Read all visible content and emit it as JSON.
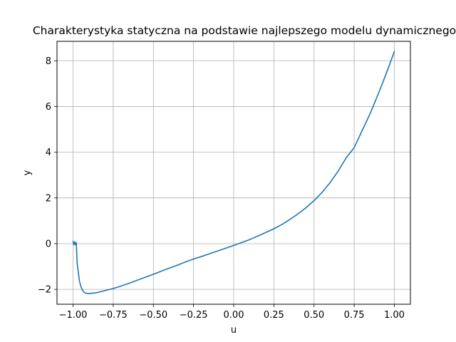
{
  "chart_data": {
    "type": "line",
    "title": "Charakterystyka statyczna na podstawie najlepszego modelu dynamicznego",
    "xlabel": "u",
    "ylabel": "y",
    "xlim": [
      -1.1,
      1.1
    ],
    "ylim": [
      -2.65,
      8.85
    ],
    "xticks": [
      -1.0,
      -0.75,
      -0.5,
      -0.25,
      0.0,
      0.25,
      0.5,
      0.75,
      1.0
    ],
    "xtick_labels": [
      "−1.00",
      "−0.75",
      "−0.50",
      "−0.25",
      "0.00",
      "0.25",
      "0.50",
      "0.75",
      "1.00"
    ],
    "yticks": [
      -2,
      0,
      2,
      4,
      6,
      8
    ],
    "ytick_labels": [
      "−2",
      "0",
      "2",
      "4",
      "6",
      "8"
    ],
    "grid": true,
    "series": [
      {
        "color": "#1f77b4",
        "x": [
          -1.0,
          -0.995,
          -0.99,
          -0.985,
          -0.98,
          -0.975,
          -0.97,
          -0.96,
          -0.95,
          -0.94,
          -0.93,
          -0.92,
          -0.91,
          -0.9,
          -0.88,
          -0.85,
          -0.8,
          -0.75,
          -0.7,
          -0.65,
          -0.6,
          -0.55,
          -0.5,
          -0.45,
          -0.4,
          -0.35,
          -0.3,
          -0.25,
          -0.2,
          -0.15,
          -0.1,
          -0.05,
          0.0,
          0.05,
          0.1,
          0.15,
          0.2,
          0.25,
          0.3,
          0.35,
          0.4,
          0.45,
          0.5,
          0.55,
          0.6,
          0.65,
          0.7,
          0.75,
          0.8,
          0.85,
          0.9,
          0.95,
          1.0
        ],
        "y": [
          0.1,
          -0.05,
          0.08,
          -0.05,
          0.05,
          -0.8,
          -1.1,
          -1.65,
          -1.9,
          -2.05,
          -2.13,
          -2.17,
          -2.18,
          -2.18,
          -2.17,
          -2.14,
          -2.05,
          -1.96,
          -1.85,
          -1.73,
          -1.6,
          -1.47,
          -1.34,
          -1.2,
          -1.07,
          -0.94,
          -0.8,
          -0.67,
          -0.56,
          -0.44,
          -0.32,
          -0.2,
          -0.08,
          0.05,
          0.18,
          0.33,
          0.49,
          0.65,
          0.84,
          1.06,
          1.3,
          1.57,
          1.88,
          2.24,
          2.67,
          3.17,
          3.75,
          4.2,
          4.95,
          5.7,
          6.55,
          7.45,
          8.4
        ]
      }
    ]
  }
}
